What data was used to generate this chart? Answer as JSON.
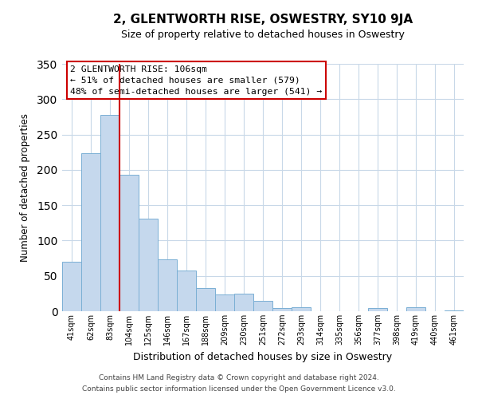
{
  "title": "2, GLENTWORTH RISE, OSWESTRY, SY10 9JA",
  "subtitle": "Size of property relative to detached houses in Oswestry",
  "xlabel": "Distribution of detached houses by size in Oswestry",
  "ylabel": "Number of detached properties",
  "categories": [
    "41sqm",
    "62sqm",
    "83sqm",
    "104sqm",
    "125sqm",
    "146sqm",
    "167sqm",
    "188sqm",
    "209sqm",
    "230sqm",
    "251sqm",
    "272sqm",
    "293sqm",
    "314sqm",
    "335sqm",
    "356sqm",
    "377sqm",
    "398sqm",
    "419sqm",
    "440sqm",
    "461sqm"
  ],
  "values": [
    70,
    224,
    278,
    193,
    131,
    73,
    58,
    33,
    24,
    25,
    15,
    4,
    6,
    0,
    0,
    0,
    5,
    0,
    6,
    0,
    1
  ],
  "bar_color": "#c5d8ed",
  "bar_edge_color": "#7aafd4",
  "highlight_line_index": 3,
  "highlight_line_color": "#cc0000",
  "ylim": [
    0,
    350
  ],
  "yticks": [
    0,
    50,
    100,
    150,
    200,
    250,
    300,
    350
  ],
  "annotation_title": "2 GLENTWORTH RISE: 106sqm",
  "annotation_line1": "← 51% of detached houses are smaller (579)",
  "annotation_line2": "48% of semi-detached houses are larger (541) →",
  "annotation_box_color": "#ffffff",
  "annotation_box_edge": "#cc0000",
  "footer_line1": "Contains HM Land Registry data © Crown copyright and database right 2024.",
  "footer_line2": "Contains public sector information licensed under the Open Government Licence v3.0.",
  "background_color": "#ffffff",
  "grid_color": "#c8d8e8"
}
